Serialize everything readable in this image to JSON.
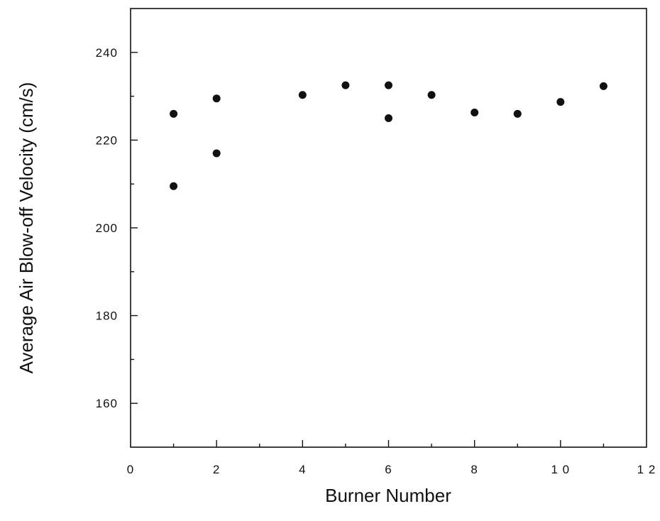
{
  "chart_data": {
    "type": "scatter",
    "title": "",
    "xlabel": "Burner Number",
    "ylabel": "Average Air Blow-off Velocity (cm/s)",
    "xlim": [
      0,
      12
    ],
    "ylim": [
      150,
      250
    ],
    "x_ticks": [
      0,
      2,
      4,
      6,
      8,
      10,
      12
    ],
    "y_ticks": [
      160,
      180,
      200,
      220,
      240
    ],
    "x_tick_labels": [
      "0",
      "2",
      "4",
      "6",
      "8",
      "1 0",
      "1 2"
    ],
    "y_tick_labels": [
      "160",
      "180",
      "200",
      "220",
      "240"
    ],
    "grid": false,
    "legend": "none",
    "marker_color": "#111111",
    "series": [
      {
        "points": [
          {
            "x": 1,
            "y": 226.0
          },
          {
            "x": 1,
            "y": 209.5
          },
          {
            "x": 2,
            "y": 229.5
          },
          {
            "x": 2,
            "y": 217.0
          },
          {
            "x": 4,
            "y": 230.3
          },
          {
            "x": 5,
            "y": 232.5
          },
          {
            "x": 6,
            "y": 232.5
          },
          {
            "x": 6,
            "y": 225.0
          },
          {
            "x": 7,
            "y": 230.3
          },
          {
            "x": 8,
            "y": 226.3
          },
          {
            "x": 9,
            "y": 226.0
          },
          {
            "x": 10,
            "y": 228.7
          },
          {
            "x": 11,
            "y": 232.3
          }
        ]
      }
    ]
  }
}
